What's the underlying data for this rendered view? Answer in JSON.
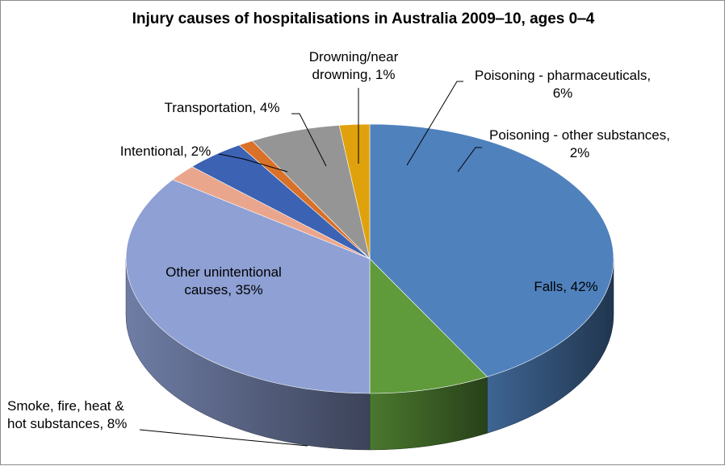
{
  "chart_data": {
    "type": "pie",
    "title": "Injury causes of hospitalisations in Australia 2009‒10, ages 0‒4",
    "slices": [
      {
        "label": "Falls",
        "value": 42,
        "color": "#4f81bd",
        "text_color": "#000000",
        "label_lines": [
          "Falls, 42%"
        ]
      },
      {
        "label": "Smoke, fire, heat & hot substances",
        "value": 8,
        "color": "#5f9a3b",
        "text_color": "#000000",
        "label_lines": [
          "Smoke, fire, heat &",
          "hot substances, 8%"
        ]
      },
      {
        "label": "Other unintentional causes",
        "value": 35,
        "color": "#8ea0d4",
        "text_color": "#000000",
        "label_lines": [
          "Other unintentional",
          "causes, 35%"
        ]
      },
      {
        "label": "Intentional",
        "value": 2,
        "color": "#eaa68c",
        "text_color": "#000000",
        "label_lines": [
          "Intentional, 2%"
        ]
      },
      {
        "label": "Transportation",
        "value": 4,
        "color": "#3c62b3",
        "text_color": "#000000",
        "label_lines": [
          "Transportation, 4%"
        ]
      },
      {
        "label": "Drowning/near drowning",
        "value": 1,
        "color": "#d97128",
        "text_color": "#000000",
        "label_lines": [
          "Drowning/near",
          "drowning, 1%"
        ]
      },
      {
        "label": "Poisoning - pharmaceuticals",
        "value": 6,
        "color": "#959595",
        "text_color": "#000000",
        "label_lines": [
          "Poisoning - pharmaceuticals,",
          "6%"
        ]
      },
      {
        "label": "Poisoning - other substances",
        "value": 2,
        "color": "#e0a20c",
        "text_color": "#e8151b",
        "label_lines": [
          "Poisoning - other substances,",
          "2%"
        ]
      }
    ]
  }
}
